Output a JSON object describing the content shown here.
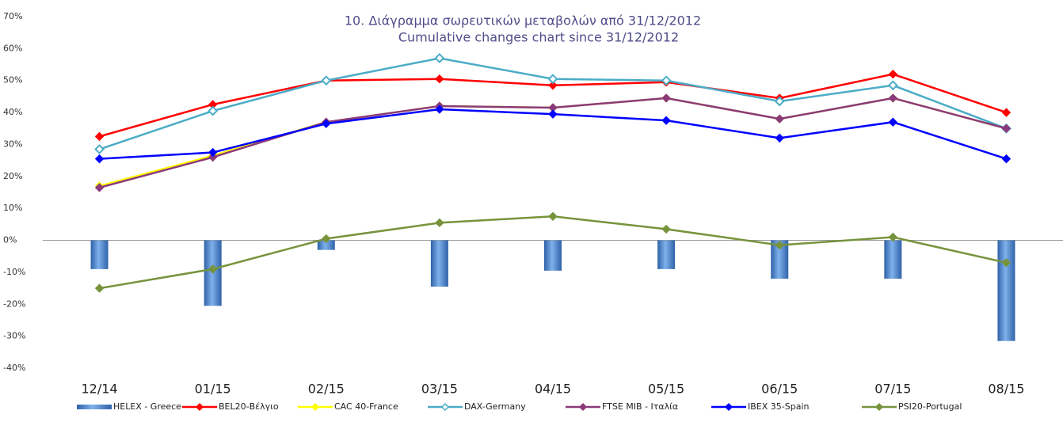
{
  "chart_data": {
    "type": "bar-line",
    "title": [
      "10.  Διάγραμμα σωρευτικών μεταβολών από 31/12/2012",
      "Cumulative changes chart since 31/12/2012"
    ],
    "categories": [
      "12/14",
      "01/15",
      "02/15",
      "03/15",
      "04/15",
      "05/15",
      "06/15",
      "07/15",
      "08/15"
    ],
    "series": [
      {
        "name": "HELEX - Greece",
        "type": "bar",
        "color": "#4a86d0",
        "values": [
          -9,
          -20.5,
          -3,
          -14.5,
          -9.5,
          -9,
          -12,
          -12,
          -31.5
        ]
      },
      {
        "name": "BEL20-Βέλγιο",
        "type": "line",
        "marker": "filled",
        "color": "#ff0000",
        "values": [
          32.5,
          42.5,
          50,
          50.5,
          48.5,
          49.5,
          44.5,
          52,
          40
        ]
      },
      {
        "name": "CAC 40-France",
        "type": "line",
        "marker": "filled",
        "color": "#ffff00",
        "values": [
          17,
          26.5,
          37,
          42,
          41.5,
          44.5,
          38,
          44.5,
          35
        ]
      },
      {
        "name": "DAX-Germany",
        "type": "line",
        "marker": "hollow",
        "color": "#4bacc6",
        "values": [
          28.5,
          40.5,
          50,
          57,
          50.5,
          50,
          43.5,
          48.5,
          35
        ]
      },
      {
        "name": "FTSE MIB - Ιταλία",
        "type": "line",
        "marker": "filled",
        "color": "#8b3a7a",
        "values": [
          16.5,
          26,
          37,
          42,
          41.5,
          44.5,
          38,
          44.5,
          35
        ]
      },
      {
        "name": "IBEX 35-Spain",
        "type": "line",
        "marker": "filled",
        "color": "#0000ff",
        "values": [
          25.5,
          27.5,
          36.5,
          41,
          39.5,
          37.5,
          32,
          37,
          25.5
        ]
      },
      {
        "name": "PSI20-Portugal",
        "type": "line",
        "marker": "filled",
        "color": "#77933c",
        "values": [
          -15,
          -9,
          0.5,
          5.5,
          7.5,
          3.5,
          -1.5,
          1,
          -7
        ]
      }
    ],
    "ylim": [
      -40,
      70
    ],
    "yticks": [
      {
        "value": -40,
        "label": "-40%"
      },
      {
        "value": -30,
        "label": "-30%"
      },
      {
        "value": -20,
        "label": "-20%"
      },
      {
        "value": -10,
        "label": "-10%"
      },
      {
        "value": 0,
        "label": "0%"
      },
      {
        "value": 10,
        "label": "10%"
      },
      {
        "value": 20,
        "label": "20%"
      },
      {
        "value": 30,
        "label": "30%"
      },
      {
        "value": 40,
        "label": "40%"
      },
      {
        "value": 50,
        "label": "50%"
      },
      {
        "value": 60,
        "label": "60%"
      },
      {
        "value": 70,
        "label": "70%"
      }
    ],
    "grid": false,
    "legend": "bottom"
  }
}
